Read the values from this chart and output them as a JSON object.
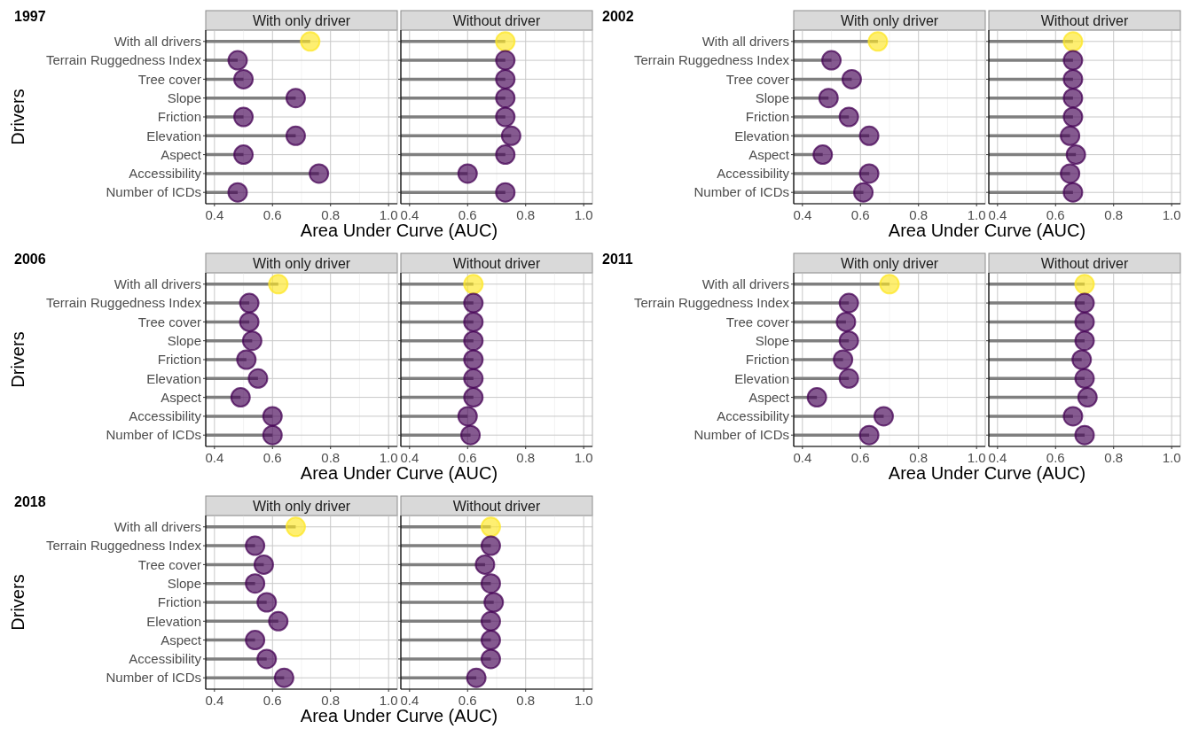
{
  "chart_data": [
    {
      "type": "lollipop",
      "orientation": "horizontal",
      "title": "1997",
      "subtitle": "With only driver",
      "xlabel": "Area Under Curve (AUC)",
      "ylabel": "Drivers",
      "categories": [
        "With all drivers",
        "Terrain Ruggedness Index",
        "Tree cover",
        "Slope",
        "Friction",
        "Elevation",
        "Aspect",
        "Accessibility",
        "Number of ICDs"
      ],
      "values": [
        0.73,
        0.48,
        0.5,
        0.68,
        0.5,
        0.68,
        0.5,
        0.76,
        0.48
      ],
      "colors": [
        "#fde725",
        "#440154",
        "#440154",
        "#440154",
        "#440154",
        "#440154",
        "#440154",
        "#440154",
        "#440154"
      ],
      "xlim": [
        0.37,
        1.03
      ],
      "xticks": [
        0.4,
        {
          "value": 0.5,
          "label": null
        },
        0.6,
        {
          "value": 0.7,
          "label": null
        },
        0.8,
        {
          "value": 0.9,
          "label": null
        },
        {
          "value": 1,
          "label": "1.0"
        }
      ],
      "grid": true
    },
    {
      "type": "lollipop",
      "subtitle": "Without driver",
      "categories": [
        null,
        null,
        null,
        null,
        null,
        null,
        null,
        null,
        null
      ],
      "orientation": "horizontal",
      "values": [
        0.73,
        0.73,
        0.73,
        0.73,
        0.73,
        0.75,
        0.73,
        0.6,
        0.73
      ],
      "colors": [
        "#fde725",
        "#440154",
        "#440154",
        "#440154",
        "#440154",
        "#440154",
        "#440154",
        "#440154",
        "#440154"
      ],
      "xlim": [
        0.37,
        1.03
      ],
      "xticks": [
        0.4,
        {
          "value": 0.5,
          "label": null
        },
        0.6,
        {
          "value": 0.7,
          "label": null
        },
        0.8,
        {
          "value": 0.9,
          "label": null
        },
        {
          "value": 1,
          "label": "1.0"
        }
      ],
      "grid": true,
      "tick_labels": "x"
    },
    {
      "type": "lollipop",
      "orientation": "horizontal",
      "title": "2002",
      "subtitle": "With only driver",
      "xlabel": "Area Under Curve (AUC)",
      "categories": [
        "With all drivers",
        "Terrain Ruggedness Index",
        "Tree cover",
        "Slope",
        "Friction",
        "Elevation",
        "Aspect",
        "Accessibility",
        "Number of ICDs"
      ],
      "values": [
        0.66,
        0.5,
        0.57,
        0.49,
        0.56,
        0.63,
        0.47,
        0.63,
        0.61
      ],
      "colors": [
        "#fde725",
        "#440154",
        "#440154",
        "#440154",
        "#440154",
        "#440154",
        "#440154",
        "#440154",
        "#440154"
      ],
      "xlim": [
        0.37,
        1.03
      ],
      "xticks": [
        0.4,
        {
          "value": 0.5,
          "label": null
        },
        0.6,
        {
          "value": 0.7,
          "label": null
        },
        0.8,
        {
          "value": 0.9,
          "label": null
        },
        {
          "value": 1,
          "label": "1.0"
        }
      ],
      "grid": true
    },
    {
      "type": "lollipop",
      "subtitle": "Without driver",
      "categories": [
        null,
        null,
        null,
        null,
        null,
        null,
        null,
        null,
        null
      ],
      "orientation": "horizontal",
      "values": [
        0.66,
        0.66,
        0.66,
        0.66,
        0.66,
        0.65,
        0.67,
        0.65,
        0.66
      ],
      "colors": [
        "#fde725",
        "#440154",
        "#440154",
        "#440154",
        "#440154",
        "#440154",
        "#440154",
        "#440154",
        "#440154"
      ],
      "xlim": [
        0.37,
        1.03
      ],
      "xticks": [
        0.4,
        {
          "value": 0.5,
          "label": null
        },
        0.6,
        {
          "value": 0.7,
          "label": null
        },
        0.8,
        {
          "value": 0.9,
          "label": null
        },
        {
          "value": 1,
          "label": "1.0"
        }
      ],
      "grid": true,
      "tick_labels": "x"
    },
    {
      "type": "lollipop",
      "orientation": "horizontal",
      "title": "2006",
      "subtitle": "With only driver",
      "xlabel": "Area Under Curve (AUC)",
      "ylabel": "Drivers",
      "categories": [
        "With all drivers",
        "Terrain Ruggedness Index",
        "Tree cover",
        "Slope",
        "Friction",
        "Elevation",
        "Aspect",
        "Accessibility",
        "Number of ICDs"
      ],
      "values": [
        0.62,
        0.52,
        0.52,
        0.53,
        0.51,
        0.55,
        0.49,
        0.6,
        0.6
      ],
      "colors": [
        "#fde725",
        "#440154",
        "#440154",
        "#440154",
        "#440154",
        "#440154",
        "#440154",
        "#440154",
        "#440154"
      ],
      "xlim": [
        0.37,
        1.03
      ],
      "xticks": [
        0.4,
        {
          "value": 0.5,
          "label": null
        },
        0.6,
        {
          "value": 0.7,
          "label": null
        },
        0.8,
        {
          "value": 0.9,
          "label": null
        },
        {
          "value": 1,
          "label": "1.0"
        }
      ],
      "grid": true
    },
    {
      "type": "lollipop",
      "subtitle": "Without driver",
      "categories": [
        null,
        null,
        null,
        null,
        null,
        null,
        null,
        null,
        null
      ],
      "orientation": "horizontal",
      "values": [
        0.62,
        0.62,
        0.62,
        0.62,
        0.62,
        0.62,
        0.62,
        0.6,
        0.61
      ],
      "colors": [
        "#fde725",
        "#440154",
        "#440154",
        "#440154",
        "#440154",
        "#440154",
        "#440154",
        "#440154",
        "#440154"
      ],
      "xlim": [
        0.37,
        1.03
      ],
      "xticks": [
        0.4,
        {
          "value": 0.5,
          "label": null
        },
        0.6,
        {
          "value": 0.7,
          "label": null
        },
        0.8,
        {
          "value": 0.9,
          "label": null
        },
        {
          "value": 1,
          "label": "1.0"
        }
      ],
      "grid": true,
      "tick_labels": "x"
    },
    {
      "type": "lollipop",
      "orientation": "horizontal",
      "title": "2011",
      "subtitle": "With only driver",
      "xlabel": "Area Under Curve (AUC)",
      "categories": [
        "With all drivers",
        "Terrain Ruggedness Index",
        "Tree cover",
        "Slope",
        "Friction",
        "Elevation",
        "Aspect",
        "Accessibility",
        "Number of ICDs"
      ],
      "values": [
        0.7,
        0.56,
        0.55,
        0.56,
        0.54,
        0.56,
        0.45,
        0.68,
        0.63
      ],
      "colors": [
        "#fde725",
        "#440154",
        "#440154",
        "#440154",
        "#440154",
        "#440154",
        "#440154",
        "#440154",
        "#440154"
      ],
      "xlim": [
        0.37,
        1.03
      ],
      "xticks": [
        0.4,
        {
          "value": 0.5,
          "label": null
        },
        0.6,
        {
          "value": 0.7,
          "label": null
        },
        0.8,
        {
          "value": 0.9,
          "label": null
        },
        {
          "value": 1,
          "label": "1.0"
        }
      ],
      "grid": true
    },
    {
      "type": "lollipop",
      "subtitle": "Without driver",
      "categories": [
        null,
        null,
        null,
        null,
        null,
        null,
        null,
        null,
        null
      ],
      "orientation": "horizontal",
      "values": [
        0.7,
        0.7,
        0.7,
        0.7,
        0.69,
        0.7,
        0.71,
        0.66,
        0.7
      ],
      "colors": [
        "#fde725",
        "#440154",
        "#440154",
        "#440154",
        "#440154",
        "#440154",
        "#440154",
        "#440154",
        "#440154"
      ],
      "xlim": [
        0.37,
        1.03
      ],
      "xticks": [
        0.4,
        {
          "value": 0.5,
          "label": null
        },
        0.6,
        {
          "value": 0.7,
          "label": null
        },
        0.8,
        {
          "value": 0.9,
          "label": null
        },
        {
          "value": 1,
          "label": "1.0"
        }
      ],
      "grid": true,
      "tick_labels": "x"
    },
    {
      "type": "lollipop",
      "orientation": "horizontal",
      "title": "2018",
      "subtitle": "With only driver",
      "xlabel": "Area Under Curve (AUC)",
      "ylabel": "Drivers",
      "categories": [
        "With all drivers",
        "Terrain Ruggedness Index",
        "Tree cover",
        "Slope",
        "Friction",
        "Elevation",
        "Aspect",
        "Accessibility",
        "Number of ICDs"
      ],
      "values": [
        0.68,
        0.54,
        0.57,
        0.54,
        0.58,
        0.62,
        0.54,
        0.58,
        0.64
      ],
      "colors": [
        "#fde725",
        "#440154",
        "#440154",
        "#440154",
        "#440154",
        "#440154",
        "#440154",
        "#440154",
        "#440154"
      ],
      "xlim": [
        0.37,
        1.03
      ],
      "xticks": [
        0.4,
        {
          "value": 0.5,
          "label": null
        },
        0.6,
        {
          "value": 0.7,
          "label": null
        },
        0.8,
        {
          "value": 0.9,
          "label": null
        },
        {
          "value": 1,
          "label": "1.0"
        }
      ],
      "grid": true
    },
    {
      "type": "lollipop",
      "subtitle": "Without driver",
      "categories": [
        null,
        null,
        null,
        null,
        null,
        null,
        null,
        null,
        null
      ],
      "orientation": "horizontal",
      "values": [
        0.68,
        0.68,
        0.66,
        0.68,
        0.69,
        0.68,
        0.68,
        0.68,
        0.63
      ],
      "colors": [
        "#fde725",
        "#440154",
        "#440154",
        "#440154",
        "#440154",
        "#440154",
        "#440154",
        "#440154",
        "#440154"
      ],
      "xlim": [
        0.37,
        1.03
      ],
      "xticks": [
        0.4,
        {
          "value": 0.5,
          "label": null
        },
        0.6,
        {
          "value": 0.7,
          "label": null
        },
        0.8,
        {
          "value": 0.9,
          "label": null
        },
        {
          "value": 1,
          "label": "1.0"
        }
      ],
      "grid": true,
      "tick_labels": "x"
    }
  ]
}
